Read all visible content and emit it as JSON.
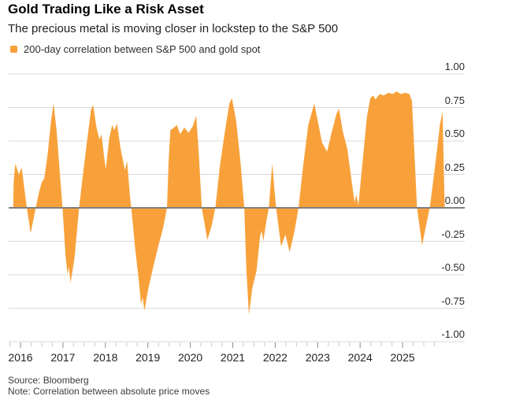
{
  "header": {
    "title": "Gold Trading Like a Risk Asset",
    "subtitle": "The precious metal is moving closer in lockstep to the S&P 500"
  },
  "legend": {
    "label": "200-day correlation between S&P 500 and gold spot",
    "swatch_color": "#F8A13A"
  },
  "footer": {
    "source": "Source: Bloomberg",
    "note": "Note: Correlation between absolute price moves"
  },
  "colors": {
    "series": "#F8A13A",
    "grid": "#d9d9d9",
    "zero_line": "#7f7f7f",
    "tick_minor": "#c9c9c9",
    "tick_major": "#8a8a8a"
  },
  "chart_data": {
    "type": "area",
    "title": "200-day correlation between S&P 500 and gold spot",
    "xlabel": "",
    "ylabel": "",
    "ylim": [
      -1.0,
      1.0
    ],
    "xlim_years": [
      2015.72,
      2026.45
    ],
    "grid": true,
    "zero_line": true,
    "legend_position": "top-left",
    "y_axis_side": "right",
    "y_tick_values": [
      1.0,
      0.75,
      0.5,
      0.25,
      0.0,
      -0.25,
      -0.5,
      -0.75,
      -1.0
    ],
    "y_tick_labels": [
      "1.00",
      "0.75",
      "0.50",
      "0.25",
      "0.00",
      "-0.25",
      "-0.50",
      "-0.75",
      "-1.00"
    ],
    "x_tick_years": [
      2016,
      2017,
      2018,
      2019,
      2020,
      2021,
      2022,
      2023,
      2024,
      2025
    ],
    "x_tick_labels": [
      "2016",
      "2017",
      "2018",
      "2019",
      "2020",
      "2021",
      "2022",
      "2023",
      "2024",
      "2025"
    ],
    "minor_tick_step_years": 0.25,
    "series": [
      {
        "name": "200-day correlation between S&P 500 and gold spot",
        "color": "#F8A13A",
        "points": [
          [
            2015.83,
            0.02
          ],
          [
            2015.84,
            0.2
          ],
          [
            2015.88,
            0.33
          ],
          [
            2015.96,
            0.25
          ],
          [
            2016.03,
            0.3
          ],
          [
            2016.1,
            0.12
          ],
          [
            2016.15,
            0.0
          ],
          [
            2016.24,
            -0.19
          ],
          [
            2016.36,
            0.0
          ],
          [
            2016.44,
            0.12
          ],
          [
            2016.5,
            0.19
          ],
          [
            2016.56,
            0.22
          ],
          [
            2016.64,
            0.4
          ],
          [
            2016.72,
            0.65
          ],
          [
            2016.78,
            0.78
          ],
          [
            2016.85,
            0.58
          ],
          [
            2016.93,
            0.25
          ],
          [
            2016.99,
            0.0
          ],
          [
            2017.06,
            -0.35
          ],
          [
            2017.11,
            -0.5
          ],
          [
            2017.14,
            -0.44
          ],
          [
            2017.18,
            -0.56
          ],
          [
            2017.27,
            -0.38
          ],
          [
            2017.38,
            0.0
          ],
          [
            2017.46,
            0.22
          ],
          [
            2017.56,
            0.48
          ],
          [
            2017.66,
            0.73
          ],
          [
            2017.71,
            0.77
          ],
          [
            2017.79,
            0.6
          ],
          [
            2017.86,
            0.51
          ],
          [
            2017.91,
            0.55
          ],
          [
            2017.97,
            0.38
          ],
          [
            2018.01,
            0.29
          ],
          [
            2018.09,
            0.52
          ],
          [
            2018.16,
            0.62
          ],
          [
            2018.21,
            0.58
          ],
          [
            2018.27,
            0.63
          ],
          [
            2018.36,
            0.44
          ],
          [
            2018.46,
            0.28
          ],
          [
            2018.51,
            0.35
          ],
          [
            2018.58,
            0.08
          ],
          [
            2018.61,
            0.0
          ],
          [
            2018.7,
            -0.3
          ],
          [
            2018.78,
            -0.52
          ],
          [
            2018.84,
            -0.72
          ],
          [
            2018.88,
            -0.67
          ],
          [
            2018.92,
            -0.77
          ],
          [
            2019.0,
            -0.62
          ],
          [
            2019.12,
            -0.45
          ],
          [
            2019.25,
            -0.28
          ],
          [
            2019.36,
            -0.15
          ],
          [
            2019.45,
            0.0
          ],
          [
            2019.49,
            0.35
          ],
          [
            2019.53,
            0.58
          ],
          [
            2019.62,
            0.6
          ],
          [
            2019.68,
            0.62
          ],
          [
            2019.76,
            0.55
          ],
          [
            2019.86,
            0.6
          ],
          [
            2019.96,
            0.56
          ],
          [
            2020.06,
            0.61
          ],
          [
            2020.14,
            0.69
          ],
          [
            2020.2,
            0.4
          ],
          [
            2020.27,
            0.0
          ],
          [
            2020.4,
            -0.24
          ],
          [
            2020.5,
            -0.14
          ],
          [
            2020.59,
            0.0
          ],
          [
            2020.7,
            0.32
          ],
          [
            2020.82,
            0.58
          ],
          [
            2020.92,
            0.78
          ],
          [
            2020.98,
            0.82
          ],
          [
            2021.08,
            0.65
          ],
          [
            2021.18,
            0.35
          ],
          [
            2021.27,
            0.0
          ],
          [
            2021.32,
            -0.45
          ],
          [
            2021.38,
            -0.8
          ],
          [
            2021.46,
            -0.6
          ],
          [
            2021.56,
            -0.47
          ],
          [
            2021.64,
            -0.22
          ],
          [
            2021.68,
            -0.17
          ],
          [
            2021.72,
            -0.25
          ],
          [
            2021.79,
            -0.1
          ],
          [
            2021.85,
            0.0
          ],
          [
            2021.93,
            0.33
          ],
          [
            2022.02,
            0.0
          ],
          [
            2022.14,
            -0.29
          ],
          [
            2022.24,
            -0.2
          ],
          [
            2022.34,
            -0.33
          ],
          [
            2022.45,
            -0.18
          ],
          [
            2022.55,
            0.0
          ],
          [
            2022.66,
            0.32
          ],
          [
            2022.78,
            0.62
          ],
          [
            2022.92,
            0.78
          ],
          [
            2023.02,
            0.62
          ],
          [
            2023.1,
            0.49
          ],
          [
            2023.22,
            0.42
          ],
          [
            2023.32,
            0.55
          ],
          [
            2023.44,
            0.7
          ],
          [
            2023.5,
            0.74
          ],
          [
            2023.6,
            0.56
          ],
          [
            2023.7,
            0.44
          ],
          [
            2023.8,
            0.2
          ],
          [
            2023.87,
            0.04
          ],
          [
            2023.91,
            0.1
          ],
          [
            2023.96,
            0.02
          ],
          [
            2024.06,
            0.35
          ],
          [
            2024.16,
            0.68
          ],
          [
            2024.24,
            0.82
          ],
          [
            2024.31,
            0.84
          ],
          [
            2024.36,
            0.81
          ],
          [
            2024.46,
            0.85
          ],
          [
            2024.56,
            0.84
          ],
          [
            2024.66,
            0.86
          ],
          [
            2024.76,
            0.85
          ],
          [
            2024.86,
            0.87
          ],
          [
            2024.96,
            0.85
          ],
          [
            2025.06,
            0.86
          ],
          [
            2025.16,
            0.85
          ],
          [
            2025.22,
            0.8
          ],
          [
            2025.28,
            0.4
          ],
          [
            2025.34,
            0.0
          ],
          [
            2025.46,
            -0.28
          ],
          [
            2025.56,
            -0.12
          ],
          [
            2025.64,
            0.0
          ],
          [
            2025.76,
            0.3
          ],
          [
            2025.88,
            0.62
          ],
          [
            2025.94,
            0.72
          ],
          [
            2025.97,
            0.3
          ],
          [
            2025.99,
            0.02
          ]
        ]
      }
    ]
  }
}
